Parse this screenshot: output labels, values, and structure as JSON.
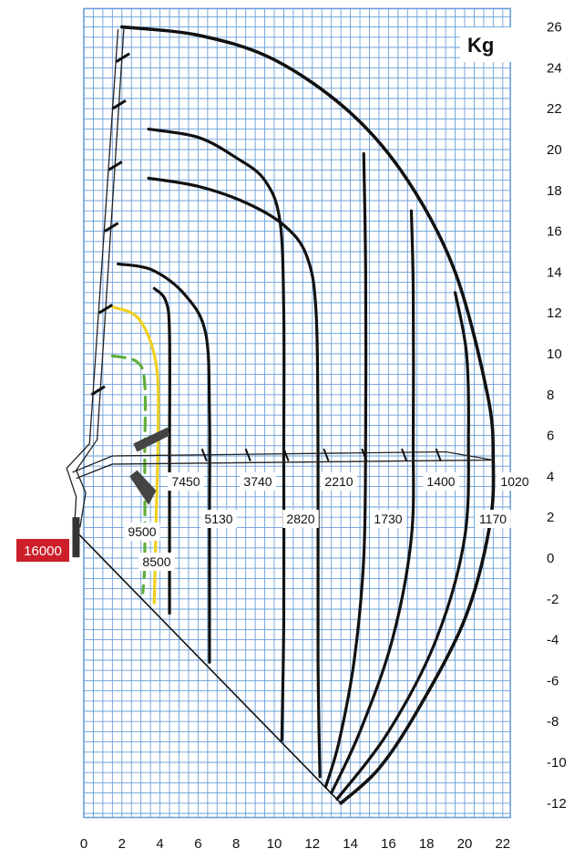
{
  "chart_data": {
    "type": "line",
    "title": "",
    "unit_label": "Kg",
    "xlabel": "",
    "ylabel": "",
    "xlim": [
      0,
      22
    ],
    "ylim": [
      -12,
      26
    ],
    "x_ticks": [
      0,
      2,
      4,
      6,
      8,
      10,
      12,
      14,
      16,
      18,
      20,
      22
    ],
    "y_ticks": [
      26,
      24,
      22,
      20,
      18,
      16,
      14,
      12,
      10,
      8,
      6,
      4,
      2,
      0,
      -2,
      -4,
      -6,
      -8,
      -10,
      -12
    ],
    "grid": true,
    "base_capacity": "16000",
    "colors": {
      "grid": "#6a9fd8",
      "curve": "#111111",
      "yellow": "#f0d020",
      "green": "#5fae3a",
      "badge": "#cc1f2a"
    },
    "capacities_top_row": [
      "7450",
      "3740",
      "2210",
      "1400",
      "1020"
    ],
    "capacities_bottom_row": [
      "5130",
      "2820",
      "1730",
      "1170"
    ],
    "capacities_side": [
      "9500",
      "8500"
    ],
    "series": [
      {
        "capacity": "1020",
        "points": [
          [
            2,
            26
          ],
          [
            6,
            25.6
          ],
          [
            10,
            24.4
          ],
          [
            14,
            21.8
          ],
          [
            17,
            18.5
          ],
          [
            19.5,
            14
          ],
          [
            21.2,
            8
          ],
          [
            21.5,
            4.8
          ],
          [
            21.3,
            1.5
          ],
          [
            20,
            -3
          ],
          [
            17.5,
            -7.5
          ],
          [
            15.5,
            -10.3
          ],
          [
            13.5,
            -12
          ]
        ]
      },
      {
        "capacity": "1170",
        "points": [
          [
            19.5,
            13
          ],
          [
            20.1,
            10
          ],
          [
            20.2,
            6
          ],
          [
            20,
            1
          ],
          [
            18.5,
            -4
          ],
          [
            16,
            -8.5
          ],
          [
            13.3,
            -11.8
          ]
        ]
      },
      {
        "capacity": "1400",
        "points": [
          [
            17.2,
            17
          ],
          [
            17.3,
            13
          ],
          [
            17.3,
            6
          ],
          [
            17.2,
            1
          ],
          [
            16.2,
            -4
          ],
          [
            14.5,
            -8.5
          ],
          [
            13,
            -11.5
          ]
        ]
      },
      {
        "capacity": "1730",
        "points": [
          [
            14.7,
            19.8
          ],
          [
            14.8,
            14
          ],
          [
            14.8,
            6
          ],
          [
            14.7,
            0
          ],
          [
            14.2,
            -5
          ],
          [
            13.4,
            -9
          ],
          [
            12.7,
            -11.2
          ]
        ]
      },
      {
        "capacity": "2210",
        "points": [
          [
            3.4,
            18.6
          ],
          [
            6,
            18.2
          ],
          [
            8.5,
            17.4
          ],
          [
            10.5,
            16.3
          ],
          [
            11.7,
            14.8
          ],
          [
            12.2,
            12
          ],
          [
            12.3,
            5
          ],
          [
            12.3,
            -5
          ],
          [
            12.4,
            -10.7
          ]
        ]
      },
      {
        "capacity": "2820",
        "points": [
          [
            3.4,
            21
          ],
          [
            6,
            20.6
          ],
          [
            8,
            19.6
          ],
          [
            9.5,
            18.5
          ],
          [
            10.3,
            16.5
          ],
          [
            10.5,
            12
          ],
          [
            10.5,
            5
          ],
          [
            10.5,
            -3
          ],
          [
            10.4,
            -8.9
          ]
        ]
      },
      {
        "capacity": "3740",
        "points": [
          [
            1.8,
            14.4
          ],
          [
            3.6,
            14.1
          ],
          [
            5.3,
            12.9
          ],
          [
            6.4,
            11
          ],
          [
            6.6,
            7
          ],
          [
            6.6,
            2
          ],
          [
            6.6,
            -5.1
          ]
        ]
      },
      {
        "capacity": "7450",
        "points": [
          [
            3.7,
            13.2
          ],
          [
            4.3,
            12.6
          ],
          [
            4.5,
            11
          ],
          [
            4.5,
            5
          ],
          [
            4.5,
            -2.7
          ]
        ]
      },
      {
        "capacity": "9500",
        "points": [
          [
            1.5,
            9.9
          ],
          [
            2.8,
            9.6
          ],
          [
            3.2,
            8.5
          ],
          [
            3.2,
            5
          ],
          [
            3.2,
            0
          ],
          [
            3.1,
            -1.7
          ]
        ],
        "color": "green",
        "dashed": true
      },
      {
        "capacity": "8500",
        "points": [
          [
            1.5,
            12.3
          ],
          [
            2.9,
            11.7
          ],
          [
            3.8,
            9.5
          ],
          [
            3.9,
            6
          ],
          [
            3.8,
            2
          ],
          [
            3.7,
            -2.2
          ]
        ],
        "color": "yellow"
      }
    ]
  }
}
